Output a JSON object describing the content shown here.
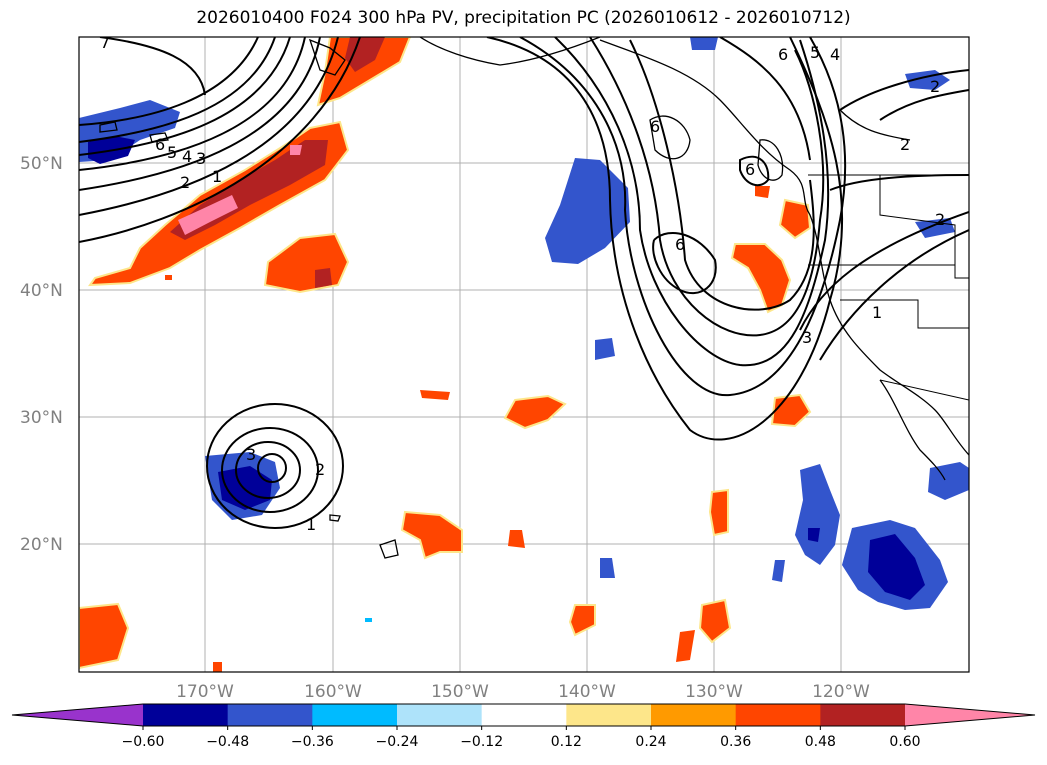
{
  "title": "2026010400 F024 300 hPa PV, precipitation PC (2026010612 - 2026010712)",
  "map": {
    "lon_range": [
      -180,
      -110
    ],
    "lat_range": [
      10,
      60
    ],
    "lat_labels": [
      "50°N",
      "40°N",
      "30°N",
      "20°N"
    ],
    "lon_labels": [
      "170°W",
      "160°W",
      "150°W",
      "140°W",
      "130°W",
      "120°W"
    ],
    "grid": true,
    "contour_labels": [
      "7",
      "6",
      "5",
      "4",
      "3",
      "2",
      "1",
      "6",
      "5",
      "4",
      "6",
      "6",
      "6",
      "3",
      "1",
      "2",
      "2",
      "3",
      "2",
      "1",
      "2"
    ]
  },
  "colorbar": {
    "ticks": [
      "−0.60",
      "−0.48",
      "−0.36",
      "−0.24",
      "−0.12",
      "0.12",
      "0.24",
      "0.36",
      "0.48",
      "0.60"
    ],
    "colors": [
      "#9933cc",
      "#000099",
      "#3355cc",
      "#00bbff",
      "#aee3fa",
      "#ffffff",
      "#fde68a",
      "#ff9a00",
      "#ff4500",
      "#b22222",
      "#ff85a8"
    ],
    "extend": "both"
  }
}
